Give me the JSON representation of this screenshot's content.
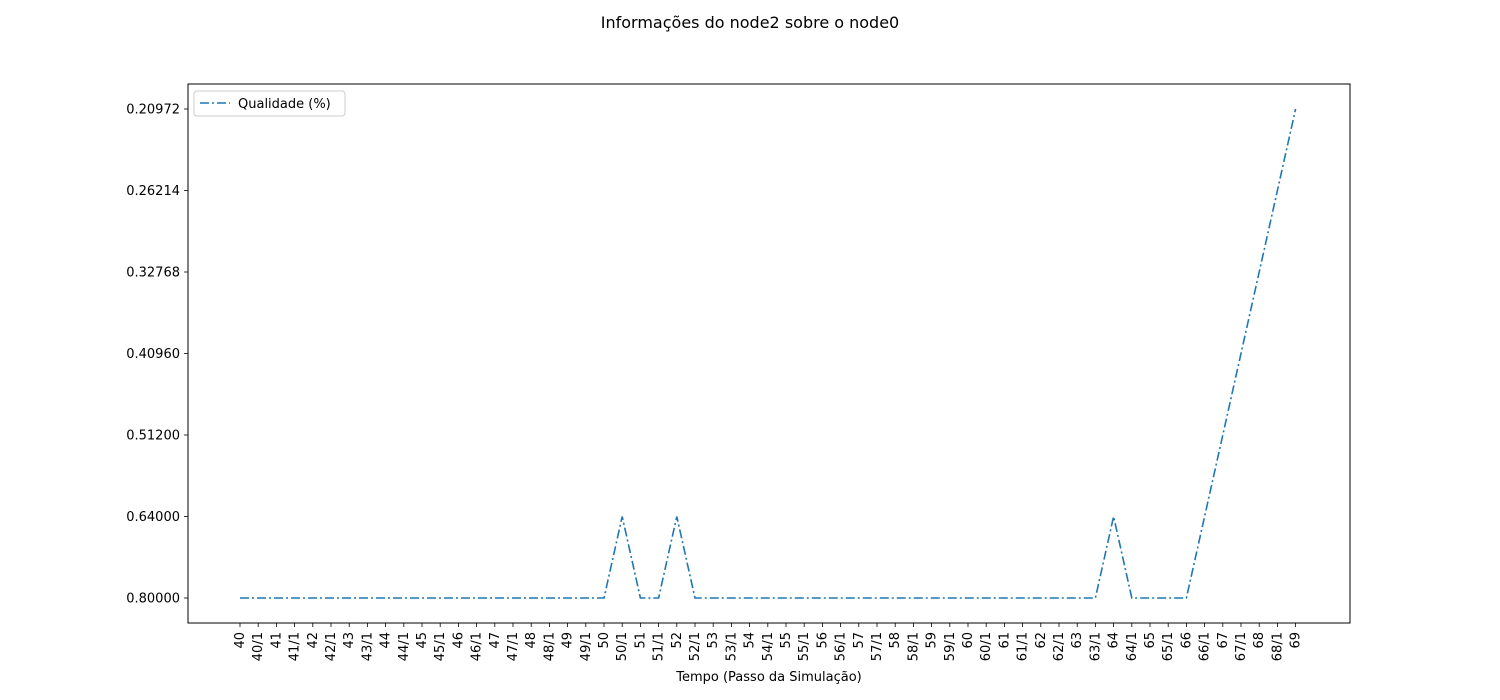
{
  "chart_data": {
    "type": "line",
    "title": "Informações do node2 sobre o node0",
    "xlabel": "Tempo (Passo da Simulação)",
    "ylabel": "",
    "categories": [
      "40",
      "40/1",
      "41",
      "41/1",
      "42",
      "42/1",
      "43",
      "43/1",
      "44",
      "44/1",
      "45",
      "45/1",
      "46",
      "46/1",
      "47",
      "47/1",
      "48",
      "48/1",
      "49",
      "49/1",
      "50",
      "50/1",
      "51",
      "51/1",
      "52",
      "52/1",
      "53",
      "53/1",
      "54",
      "54/1",
      "55",
      "55/1",
      "56",
      "56/1",
      "57",
      "57/1",
      "58",
      "58/1",
      "59",
      "59/1",
      "60",
      "60/1",
      "61",
      "61/1",
      "62",
      "62/1",
      "63",
      "63/1",
      "64",
      "64/1",
      "65",
      "65/1",
      "66",
      "66/1",
      "67",
      "67/1",
      "68",
      "68/1",
      "69"
    ],
    "y_ticks": [
      "0.80000",
      "0.64000",
      "0.51200",
      "0.40960",
      "0.32768",
      "0.26214",
      "0.20972"
    ],
    "series": [
      {
        "name": "Qualidade (%)",
        "color": "#1f77b4",
        "linestyle": "dash-dot",
        "values": [
          "0.80000",
          "0.80000",
          "0.80000",
          "0.80000",
          "0.80000",
          "0.80000",
          "0.80000",
          "0.80000",
          "0.80000",
          "0.80000",
          "0.80000",
          "0.80000",
          "0.80000",
          "0.80000",
          "0.80000",
          "0.80000",
          "0.80000",
          "0.80000",
          "0.80000",
          "0.80000",
          "0.80000",
          "0.64000",
          "0.80000",
          "0.80000",
          "0.64000",
          "0.80000",
          "0.80000",
          "0.80000",
          "0.80000",
          "0.80000",
          "0.80000",
          "0.80000",
          "0.80000",
          "0.80000",
          "0.80000",
          "0.80000",
          "0.80000",
          "0.80000",
          "0.80000",
          "0.80000",
          "0.80000",
          "0.80000",
          "0.80000",
          "0.80000",
          "0.80000",
          "0.80000",
          "0.80000",
          "0.80000",
          "0.64000",
          "0.80000",
          "0.80000",
          "0.80000",
          "0.80000",
          "0.64000",
          "0.51200",
          "0.40960",
          "0.32768",
          "0.26214",
          "0.20972"
        ]
      }
    ],
    "legend": {
      "position": "upper-left"
    },
    "grid": false
  }
}
